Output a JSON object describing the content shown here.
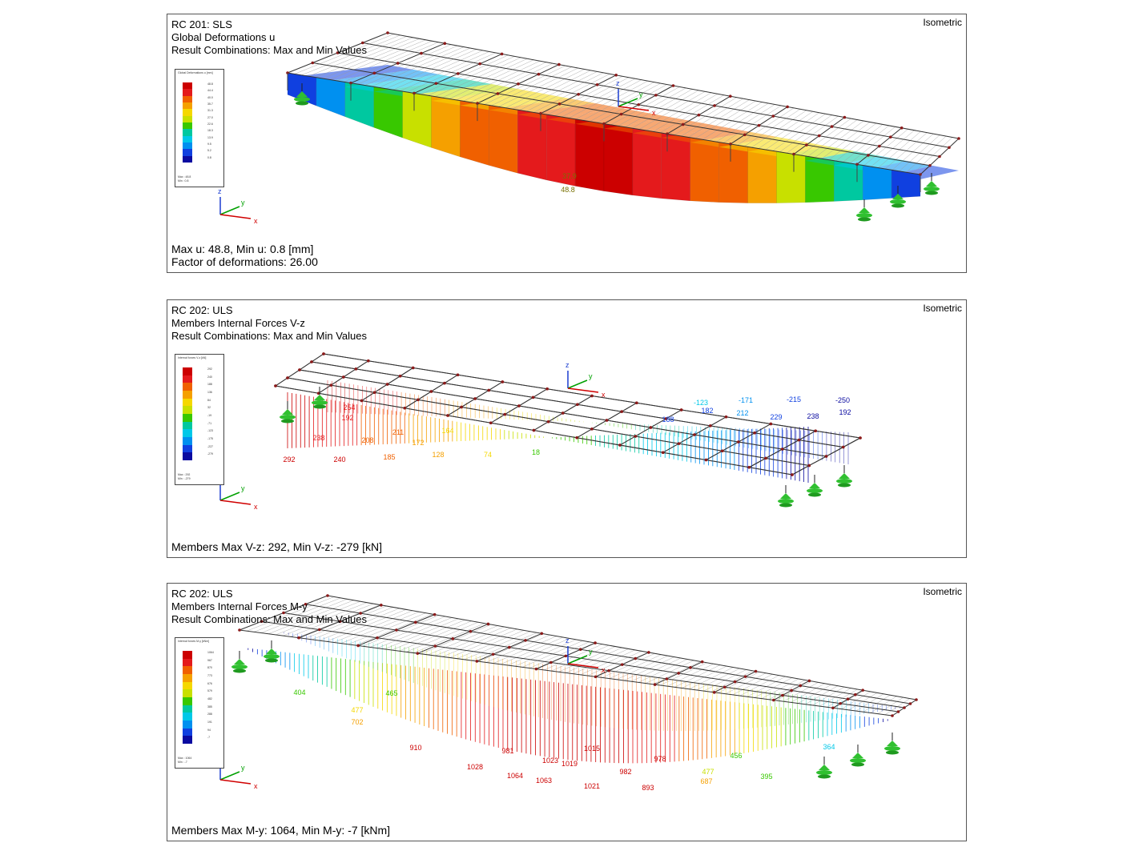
{
  "panels": [
    {
      "id": "p1",
      "lines": [
        "RC 201: SLS",
        "Global Deformations u",
        "Result Combinations: Max and Min Values"
      ],
      "view": "Isometric",
      "footer": [
        "Max u: 48.8, Min u: 0.8 [mm]",
        "Factor of deformations: 26.00"
      ],
      "legend": {
        "title": "Global Deformations\nu [mm]",
        "values": [
          "48.8",
          "44.4",
          "40.0",
          "35.7",
          "31.3",
          "27.0",
          "22.6",
          "18.3",
          "13.9",
          "9.5",
          "5.2",
          "0.8"
        ],
        "max": "Max : 48.8",
        "min": "Min : 0.8"
      },
      "labels": [
        "37.9",
        "48.8"
      ]
    },
    {
      "id": "p2",
      "lines": [
        "RC 202: ULS",
        "Members Internal Forces V-z",
        "Result Combinations: Max and Min Values"
      ],
      "view": "Isometric",
      "footer": [
        "Members Max V-z: 292, Min V-z: -279 [kN]"
      ],
      "legend": {
        "title": "Internal forces\nV-z [kN]",
        "values": [
          "292",
          "240",
          "188",
          "136",
          "84",
          "32",
          "-19",
          "-71",
          "-123",
          "-175",
          "-227",
          "-279"
        ],
        "max": "Max : 292",
        "min": "Min : -279"
      },
      "labels": [
        "192",
        "238",
        "254",
        "208",
        "211",
        "172",
        "164",
        "292",
        "240",
        "185",
        "128",
        "74",
        "18",
        "-123",
        "-171",
        "-215",
        "-250",
        "182",
        "192",
        "188",
        "212",
        "229",
        "238"
      ]
    },
    {
      "id": "p3",
      "lines": [
        "RC 202: ULS",
        "Members Internal Forces M-y",
        "Result Combinations: Max and Min Values"
      ],
      "view": "Isometric",
      "footer": [
        "Members Max M-y: 1064, Min M-y: -7 [kNm]"
      ],
      "legend": {
        "title": "Internal forces\nM-y [kNm]",
        "values": [
          "1064",
          "967",
          "870",
          "773",
          "676",
          "579",
          "482",
          "385",
          "288",
          "191",
          "94",
          "-7"
        ],
        "max": "Max : 1064",
        "min": "Min : -7"
      },
      "labels": [
        "404",
        "477",
        "702",
        "910",
        "1028",
        "1064",
        "1063",
        "1021",
        "893",
        "981",
        "1023",
        "1019",
        "1015",
        "978",
        "982",
        "687",
        "477",
        "395",
        "456",
        "465",
        "364"
      ]
    }
  ],
  "colors": {
    "scale": [
      "#cc0000",
      "#e41a1c",
      "#f06000",
      "#f5a000",
      "#f5d800",
      "#c8e000",
      "#38c800",
      "#00c8a0",
      "#00c8e8",
      "#0090f0",
      "#1040e0",
      "#0a0aa0"
    ],
    "axis_z": "#1a3cd0",
    "axis_y": "#00a000",
    "axis_x": "#d00000",
    "support": "#30c030",
    "frame": "#555555"
  },
  "axes": {
    "x": "x",
    "y": "y",
    "z": "z"
  }
}
